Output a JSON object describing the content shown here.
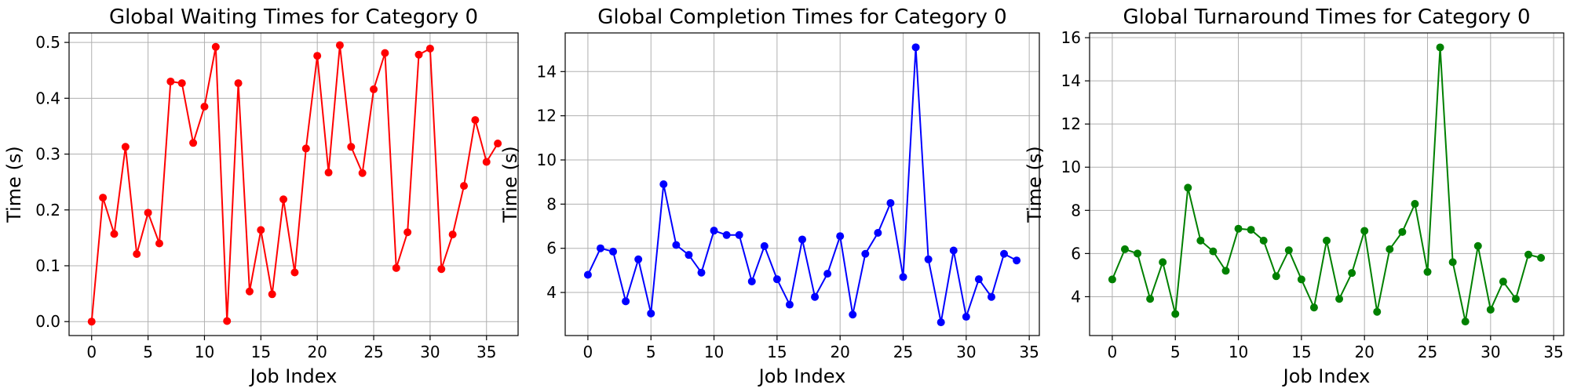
{
  "chart_data": [
    {
      "type": "line",
      "title": "Global Waiting Times for Category 0",
      "xlabel": "Job Index",
      "ylabel": "Time (s)",
      "xlim": [
        -2,
        37.8
      ],
      "ylim": [
        -0.025,
        0.517
      ],
      "xticks": [
        0,
        5,
        10,
        15,
        20,
        25,
        30,
        35
      ],
      "yticks": [
        0.0,
        0.1,
        0.2,
        0.3,
        0.4,
        0.5
      ],
      "ytick_labels": [
        "0.0",
        "0.1",
        "0.2",
        "0.3",
        "0.4",
        "0.5"
      ],
      "grid": true,
      "color": "#ff0000",
      "x": [
        0,
        1,
        2,
        3,
        4,
        5,
        6,
        7,
        8,
        9,
        10,
        11,
        12,
        13,
        14,
        15,
        16,
        17,
        18,
        19,
        20,
        21,
        22,
        23,
        24,
        25,
        26,
        27,
        28,
        29,
        30,
        31,
        32,
        33,
        34,
        35,
        36
      ],
      "values": [
        0.0,
        0.222,
        0.157,
        0.313,
        0.121,
        0.195,
        0.14,
        0.43,
        0.427,
        0.32,
        0.385,
        0.492,
        0.001,
        0.427,
        0.054,
        0.164,
        0.049,
        0.219,
        0.088,
        0.31,
        0.476,
        0.267,
        0.495,
        0.313,
        0.266,
        0.416,
        0.481,
        0.096,
        0.16,
        0.478,
        0.489,
        0.094,
        0.156,
        0.243,
        0.361,
        0.286,
        0.319
      ]
    },
    {
      "type": "line",
      "title": "Global Completion Times for Category 0",
      "xlabel": "Job Index",
      "ylabel": "Time (s)",
      "xlim": [
        -1.8,
        35.8
      ],
      "ylim": [
        2.05,
        15.75
      ],
      "xticks": [
        0,
        5,
        10,
        15,
        20,
        25,
        30,
        35
      ],
      "yticks": [
        4,
        6,
        8,
        10,
        12,
        14
      ],
      "ytick_labels": [
        "4",
        "6",
        "8",
        "10",
        "12",
        "14"
      ],
      "grid": true,
      "color": "#0000ff",
      "x": [
        0,
        1,
        2,
        3,
        4,
        5,
        6,
        7,
        8,
        9,
        10,
        11,
        12,
        13,
        14,
        15,
        16,
        17,
        18,
        19,
        20,
        21,
        22,
        23,
        24,
        25,
        26,
        27,
        28,
        29,
        30,
        31,
        32,
        33,
        34
      ],
      "values": [
        4.8,
        6.0,
        5.85,
        3.6,
        5.5,
        3.05,
        8.9,
        6.15,
        5.7,
        4.9,
        6.8,
        6.6,
        6.6,
        4.5,
        6.1,
        4.6,
        3.45,
        6.4,
        3.8,
        4.85,
        6.55,
        3.0,
        5.75,
        6.7,
        8.05,
        4.7,
        15.1,
        5.5,
        2.65,
        5.9,
        2.9,
        4.6,
        3.8,
        5.75,
        5.45
      ]
    },
    {
      "type": "line",
      "title": "Global Turnaround Times for Category 0",
      "xlabel": "Job Index",
      "ylabel": "Time (s)",
      "xlim": [
        -1.8,
        35.8
      ],
      "ylim": [
        2.2,
        16.22
      ],
      "xticks": [
        0,
        5,
        10,
        15,
        20,
        25,
        30,
        35
      ],
      "yticks": [
        4,
        6,
        8,
        10,
        12,
        14,
        16
      ],
      "ytick_labels": [
        "4",
        "6",
        "8",
        "10",
        "12",
        "14",
        "16"
      ],
      "grid": true,
      "color": "#008000",
      "x": [
        0,
        1,
        2,
        3,
        4,
        5,
        6,
        7,
        8,
        9,
        10,
        11,
        12,
        13,
        14,
        15,
        16,
        17,
        18,
        19,
        20,
        21,
        22,
        23,
        24,
        25,
        26,
        27,
        28,
        29,
        30,
        31,
        32,
        33,
        34
      ],
      "values": [
        4.8,
        6.2,
        6.0,
        3.9,
        5.6,
        3.2,
        9.05,
        6.6,
        6.1,
        5.2,
        7.15,
        7.1,
        6.6,
        4.95,
        6.15,
        4.8,
        3.5,
        6.6,
        3.9,
        5.1,
        7.05,
        3.3,
        6.2,
        7.0,
        8.3,
        5.15,
        15.55,
        5.6,
        2.85,
        6.35,
        3.4,
        4.7,
        3.9,
        5.95,
        5.8
      ]
    }
  ]
}
